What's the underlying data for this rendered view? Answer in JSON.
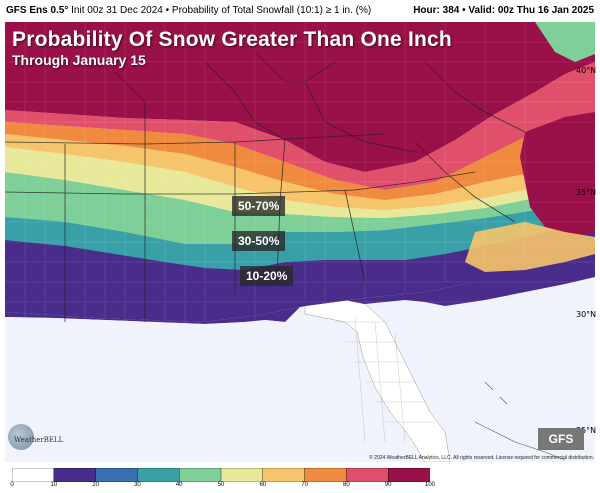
{
  "header": {
    "model": "GFS Ens 0.5°",
    "description": "Init 00z 31 Dec 2024 • Probability of Total Snowfall (10:1) ≥ 1 in. (%)",
    "hour": "Hour: 384 • Valid: 00z Thu 16 Jan 2025"
  },
  "title": "Probability Of Snow Greater Than One Inch",
  "subtitle": "Through January 15",
  "labels": {
    "label_50_70": "50-70%",
    "label_30_50": "30-50%",
    "label_10_20": "10-20%"
  },
  "latitudes": {
    "lat40": "40°N",
    "lat35": "35°N",
    "lat30": "30°N",
    "lat25": "25°N"
  },
  "gfs_badge": "GFS",
  "logo_text": "WeatherBELL",
  "copyright": "© 2024 WeatherBELL Analytics, LLC. All rights reserved. License required for commercial distribution.",
  "colorbar": {
    "ticks": [
      "0",
      "10",
      "20",
      "30",
      "40",
      "50",
      "60",
      "70",
      "80",
      "90",
      "100"
    ],
    "colors": [
      "#ffffff",
      "#4a2d8a",
      "#3a6fb0",
      "#3aa0a8",
      "#7fcf98",
      "#e8e89a",
      "#f6c46a",
      "#f08a3e",
      "#e0506a",
      "#9a1048"
    ]
  },
  "colors": {
    "ocean": "#f0f3fb",
    "band_90": "#9a1048",
    "band_80": "#e0506a",
    "band_70": "#f08a3e",
    "band_60": "#f6c46a",
    "band_50": "#e8e89a",
    "band_40": "#7fcf98",
    "band_30": "#3aa0a8",
    "band_20": "#3a6fb0",
    "band_10": "#4a2d8a"
  }
}
